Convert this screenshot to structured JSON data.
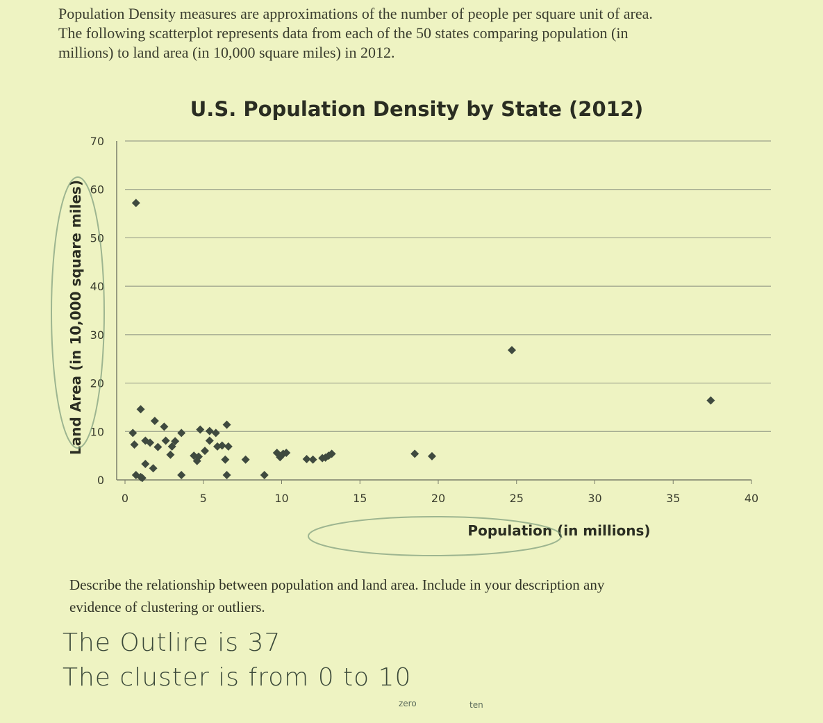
{
  "intro": {
    "line1": "Population Density measures are approximations of the number of people per square unit of area.",
    "line2": "The following scatterplot represents data from each of the 50 states comparing population (in",
    "line3": "millions) to land area (in 10,000 square miles) in 2012."
  },
  "chart_data": {
    "type": "scatter",
    "title": "U.S. Population Density by State (2012)",
    "xlabel": "Population (in millions)",
    "ylabel": "Land Area (in 10,000 square miles)",
    "xlim": [
      0,
      40
    ],
    "ylim": [
      0,
      70
    ],
    "xticks": [
      "0",
      "5",
      "10",
      "15",
      "20",
      "25",
      "30",
      "35",
      "40"
    ],
    "yticks": [
      "0",
      "10",
      "20",
      "30",
      "40",
      "50",
      "60",
      "70"
    ],
    "grid": "horizontal",
    "legend": "none",
    "marker_color": "#3f4a3f",
    "points": [
      [
        0.7,
        57.2
      ],
      [
        0.5,
        9.7
      ],
      [
        0.6,
        7.3
      ],
      [
        0.7,
        1.0
      ],
      [
        1.0,
        14.6
      ],
      [
        1.1,
        0.4
      ],
      [
        1.3,
        8.1
      ],
      [
        1.0,
        0.6
      ],
      [
        1.3,
        3.3
      ],
      [
        1.6,
        7.7
      ],
      [
        1.8,
        2.4
      ],
      [
        1.9,
        12.2
      ],
      [
        2.1,
        6.8
      ],
      [
        2.5,
        11.0
      ],
      [
        2.6,
        8.1
      ],
      [
        2.9,
        5.2
      ],
      [
        3.0,
        6.9
      ],
      [
        3.2,
        8.0
      ],
      [
        3.6,
        1.0
      ],
      [
        3.6,
        9.7
      ],
      [
        4.4,
        5.0
      ],
      [
        4.6,
        3.9
      ],
      [
        4.7,
        4.8
      ],
      [
        4.8,
        10.4
      ],
      [
        5.1,
        6.0
      ],
      [
        5.4,
        10.1
      ],
      [
        5.4,
        8.1
      ],
      [
        5.8,
        9.7
      ],
      [
        5.9,
        6.9
      ],
      [
        6.2,
        7.1
      ],
      [
        6.4,
        4.2
      ],
      [
        6.5,
        1.0
      ],
      [
        6.5,
        11.4
      ],
      [
        6.6,
        6.9
      ],
      [
        7.7,
        4.2
      ],
      [
        8.9,
        1.0
      ],
      [
        9.7,
        5.6
      ],
      [
        9.9,
        4.7
      ],
      [
        10.1,
        5.4
      ],
      [
        10.3,
        5.6
      ],
      [
        11.6,
        4.3
      ],
      [
        12.6,
        4.5
      ],
      [
        12.8,
        4.6
      ],
      [
        13.2,
        5.4
      ],
      [
        18.5,
        5.4
      ],
      [
        19.6,
        4.9
      ],
      [
        24.7,
        26.8
      ],
      [
        37.4,
        16.4
      ],
      [
        12.0,
        4.2
      ],
      [
        13.0,
        5.0
      ]
    ]
  },
  "question": {
    "line1": "Describe the relationship between population and land area. Include in your description any",
    "line2": "evidence of clustering or outliers."
  },
  "answer": {
    "line1": "The Outlire is 37",
    "line2": "The cluster is from 0 to 10",
    "note_zero": "zero",
    "note_ten": "ten"
  }
}
